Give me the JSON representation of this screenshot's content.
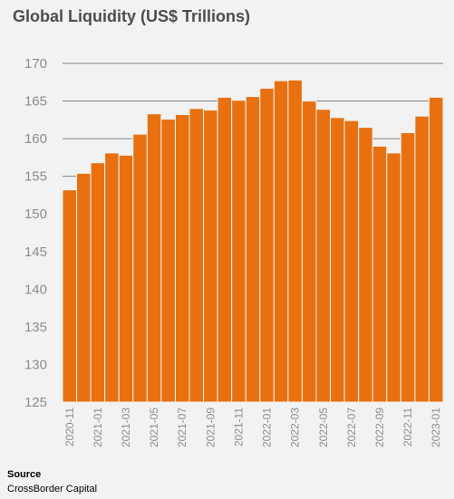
{
  "source": {
    "label": "Source",
    "text": "CrossBorder Capital"
  },
  "colors": {
    "bar": "#e8700f",
    "bar_edge": "#f2f2f2",
    "grid": "#7f7f7f",
    "tick_text": "#8c8c8c"
  },
  "chart_data": {
    "type": "bar",
    "title": "Global Liquidity (US$ Trillions)",
    "xlabel": "",
    "ylabel": "",
    "ylim": [
      125,
      170
    ],
    "yticks": [
      125,
      130,
      135,
      140,
      145,
      150,
      155,
      160,
      165,
      170
    ],
    "grid": "horizontal",
    "categories": [
      "2020-11",
      "2020-12",
      "2021-01",
      "2021-02",
      "2021-03",
      "2021-04",
      "2021-05",
      "2021-06",
      "2021-07",
      "2021-08",
      "2021-09",
      "2021-10",
      "2021-11",
      "2021-12",
      "2022-01",
      "2022-02",
      "2022-03",
      "2022-04",
      "2022-05",
      "2022-06",
      "2022-07",
      "2022-08",
      "2022-09",
      "2022-10",
      "2022-11",
      "2022-12",
      "2023-01"
    ],
    "tick_labels": [
      "2020-11",
      "2021-01",
      "2021-03",
      "2021-05",
      "2021-07",
      "2021-09",
      "2021-11",
      "2022-01",
      "2022-03",
      "2022-05",
      "2022-07",
      "2022-09",
      "2022-11",
      "2023-01"
    ],
    "values": [
      153.2,
      155.4,
      156.8,
      158.1,
      157.8,
      160.6,
      163.3,
      162.6,
      163.2,
      164.0,
      163.8,
      165.5,
      165.1,
      165.6,
      166.7,
      167.7,
      167.8,
      165.0,
      163.9,
      162.8,
      162.4,
      161.5,
      159.0,
      158.1,
      160.8,
      163.0,
      165.5
    ]
  }
}
